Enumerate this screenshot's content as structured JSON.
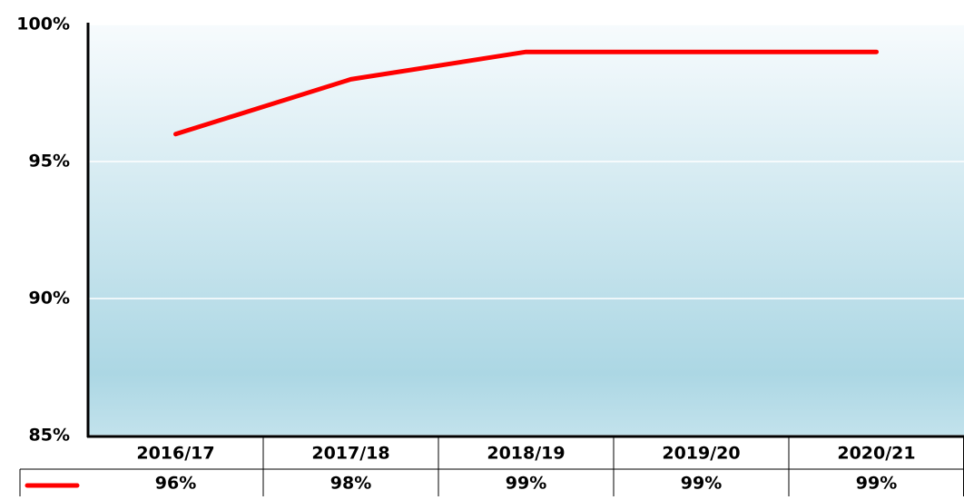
{
  "chart_data": {
    "type": "line",
    "categories": [
      "2016/17",
      "2017/18",
      "2018/19",
      "2019/20",
      "2020/21"
    ],
    "values": [
      96,
      98,
      99,
      99,
      99
    ],
    "value_labels": [
      "96%",
      "98%",
      "99%",
      "99%",
      "99%"
    ],
    "color": "#ff0000",
    "ylim": [
      85,
      100
    ],
    "yticks": [
      {
        "value": 85,
        "label": "85%"
      },
      {
        "value": 90,
        "label": "90%"
      },
      {
        "value": 95,
        "label": "95%"
      },
      {
        "value": 100,
        "label": "100%"
      }
    ],
    "grid": true
  }
}
